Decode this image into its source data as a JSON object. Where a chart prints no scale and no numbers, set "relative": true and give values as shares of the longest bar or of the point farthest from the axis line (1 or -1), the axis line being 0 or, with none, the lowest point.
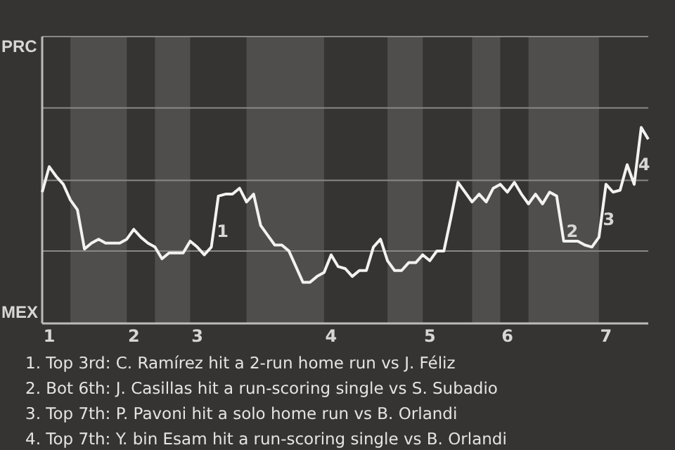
{
  "chart_data": {
    "type": "line",
    "relative": true,
    "categories": [
      null,
      "1",
      null,
      null,
      null,
      null,
      null,
      null,
      null,
      null,
      null,
      null,
      null,
      "2",
      null,
      null,
      null,
      null,
      null,
      null,
      null,
      null,
      "3",
      null,
      null,
      null,
      null,
      null,
      null,
      null,
      null,
      null,
      null,
      null,
      null,
      null,
      null,
      null,
      null,
      null,
      null,
      "4",
      null,
      null,
      null,
      null,
      null,
      null,
      null,
      null,
      null,
      null,
      null,
      null,
      null,
      "5",
      null,
      null,
      null,
      null,
      null,
      null,
      null,
      null,
      null,
      null,
      "6",
      null,
      null,
      null,
      null,
      null,
      null,
      null,
      null,
      null,
      null,
      null,
      null,
      null,
      "7",
      null,
      null,
      null,
      null,
      null,
      null
    ],
    "series": [
      {
        "color": "#f2f2f2",
        "values": [
          0.67,
          0.8,
          0.75,
          0.71,
          0.63,
          0.58,
          0.38,
          0.41,
          0.43,
          0.41,
          0.41,
          0.41,
          0.43,
          0.48,
          0.44,
          0.41,
          0.39,
          0.33,
          0.36,
          0.36,
          0.36,
          0.42,
          0.39,
          0.35,
          0.39,
          0.65,
          0.66,
          0.66,
          0.69,
          0.62,
          0.66,
          0.5,
          0.45,
          0.4,
          0.4,
          0.37,
          0.29,
          0.21,
          0.21,
          0.24,
          0.26,
          0.35,
          0.29,
          0.28,
          0.24,
          0.27,
          0.27,
          0.39,
          0.43,
          0.32,
          0.27,
          0.27,
          0.31,
          0.31,
          0.35,
          0.32,
          0.37,
          0.37,
          0.54,
          0.72,
          0.67,
          0.62,
          0.66,
          0.62,
          0.69,
          0.71,
          0.67,
          0.72,
          0.66,
          0.61,
          0.66,
          0.61,
          0.67,
          0.65,
          0.42,
          0.42,
          0.42,
          0.4,
          0.39,
          0.44,
          0.71,
          0.67,
          0.68,
          0.81,
          0.71,
          1,
          0.94
        ]
      }
    ],
    "ref_lines": [
      {
        "axis": "y",
        "value": 0.37,
        "color": "#8a8886"
      },
      {
        "axis": "y",
        "value": 0.73,
        "color": "#8a8886"
      },
      {
        "axis": "y",
        "value": 1.1,
        "color": "#8a8886"
      }
    ],
    "annotations": [
      "PRC",
      "MEX",
      "1",
      "2",
      "3",
      "4",
      "1. Top 3rd: C. Ramírez hit a 2-run home run vs J. Féliz",
      "2. Bot 6th: J. Casillas hit a run-scoring single vs S. Subadio",
      "3. Top 7th: P. Pavoni hit a solo home run vs B. Orlandi",
      "4. Top 7th: Y. bin Esam hit a run-scoring single vs B. Orlandi"
    ],
    "marker": "none",
    "line_style": "solid"
  }
}
